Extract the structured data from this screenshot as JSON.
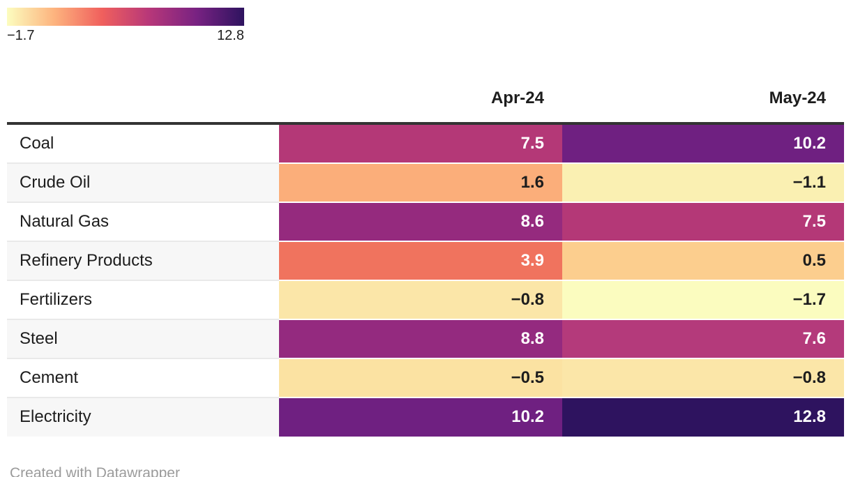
{
  "legend": {
    "min_label": "−1.7",
    "max_label": "12.8",
    "gradient_stops": [
      "#fcfdbf",
      "#fdb37e",
      "#f0605d",
      "#b73779",
      "#782282",
      "#2e135f"
    ]
  },
  "table": {
    "columns": [
      "Apr-24",
      "May-24"
    ],
    "rows": [
      {
        "label": "Coal",
        "cells": [
          {
            "value": "7.5",
            "bg": "#b43877",
            "text": "#ffffff"
          },
          {
            "value": "10.2",
            "bg": "#6f2081",
            "text": "#ffffff"
          }
        ]
      },
      {
        "label": "Crude Oil",
        "cells": [
          {
            "value": "1.6",
            "bg": "#fbae7a",
            "text": "#1d1d1d"
          },
          {
            "value": "−1.1",
            "bg": "#faf0b2",
            "text": "#1d1d1d"
          }
        ]
      },
      {
        "label": "Natural Gas",
        "cells": [
          {
            "value": "8.6",
            "bg": "#952a7e",
            "text": "#ffffff"
          },
          {
            "value": "7.5",
            "bg": "#b43877",
            "text": "#ffffff"
          }
        ]
      },
      {
        "label": "Refinery Products",
        "cells": [
          {
            "value": "3.9",
            "bg": "#f0735e",
            "text": "#ffffff"
          },
          {
            "value": "0.5",
            "bg": "#fcce8e",
            "text": "#1d1d1d"
          }
        ]
      },
      {
        "label": "Fertilizers",
        "cells": [
          {
            "value": "−0.8",
            "bg": "#fbe6a8",
            "text": "#1d1d1d"
          },
          {
            "value": "−1.7",
            "bg": "#fbfcbf",
            "text": "#1d1d1d"
          }
        ]
      },
      {
        "label": "Steel",
        "cells": [
          {
            "value": "8.8",
            "bg": "#942a7f",
            "text": "#ffffff"
          },
          {
            "value": "7.6",
            "bg": "#b43a7b",
            "text": "#ffffff"
          }
        ]
      },
      {
        "label": "Cement",
        "cells": [
          {
            "value": "−0.5",
            "bg": "#fbe2a2",
            "text": "#1d1d1d"
          },
          {
            "value": "−0.8",
            "bg": "#fbe6a8",
            "text": "#1d1d1d"
          }
        ]
      },
      {
        "label": "Electricity",
        "cells": [
          {
            "value": "10.2",
            "bg": "#6f2081",
            "text": "#ffffff"
          },
          {
            "value": "12.8",
            "bg": "#2e135f",
            "text": "#ffffff"
          }
        ]
      }
    ]
  },
  "footer": {
    "attribution": "Created with Datawrapper"
  },
  "chart_data": {
    "type": "heatmap",
    "title": "",
    "categories": [
      "Coal",
      "Crude Oil",
      "Natural Gas",
      "Refinery Products",
      "Fertilizers",
      "Steel",
      "Cement",
      "Electricity"
    ],
    "columns": [
      "Apr-24",
      "May-24"
    ],
    "series": [
      {
        "name": "Apr-24",
        "values": [
          7.5,
          1.6,
          8.6,
          3.9,
          -0.8,
          8.8,
          -0.5,
          10.2
        ]
      },
      {
        "name": "May-24",
        "values": [
          10.2,
          -1.1,
          7.5,
          0.5,
          -1.7,
          7.6,
          -0.8,
          12.8
        ]
      }
    ],
    "color_scale": {
      "min": -1.7,
      "max": 12.8,
      "palette": "magma-reversed",
      "min_color": "#fcfdbf",
      "max_color": "#2e135f"
    },
    "legend_position": "top-left",
    "grid": false
  }
}
